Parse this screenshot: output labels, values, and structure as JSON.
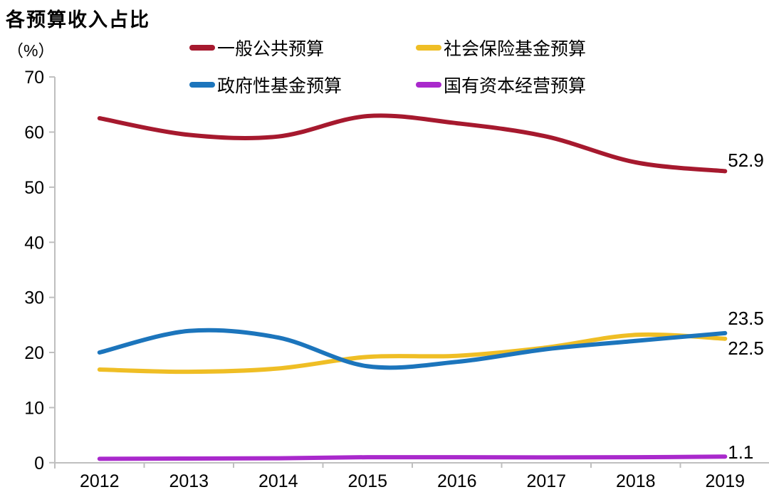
{
  "title": "各预算收入占比",
  "unit_label": "（%）",
  "colors": {
    "axis": "#BFBFBF",
    "text": "#000000",
    "background": "#FFFFFF"
  },
  "legend": [
    {
      "label": "一般公共预算",
      "color": "#A6192E"
    },
    {
      "label": "社会保险基金预算",
      "color": "#EFBE25"
    },
    {
      "label": "政府性基金预算",
      "color": "#1C75BC"
    },
    {
      "label": "国有资本经营预算",
      "color": "#A929CC"
    }
  ],
  "chart_data": {
    "type": "line",
    "title": "各预算收入占比",
    "ylabel": "（%）",
    "x": [
      "2012",
      "2013",
      "2014",
      "2015",
      "2016",
      "2017",
      "2018",
      "2019"
    ],
    "ylim": [
      0,
      70
    ],
    "yticks": [
      0,
      10,
      20,
      30,
      40,
      50,
      60,
      70
    ],
    "grid": false,
    "smooth": true,
    "legend_position": "top",
    "series": [
      {
        "name": "一般公共预算",
        "color": "#A6192E",
        "values": [
          62.5,
          59.5,
          59.2,
          62.9,
          61.6,
          59.2,
          54.5,
          52.9
        ],
        "end_label": "52.9"
      },
      {
        "name": "社会保险基金预算",
        "color": "#EFBE25",
        "values": [
          16.9,
          16.5,
          17.1,
          19.2,
          19.4,
          20.9,
          23.2,
          22.5
        ],
        "end_label": "22.5"
      },
      {
        "name": "政府性基金预算",
        "color": "#1C75BC",
        "values": [
          20.0,
          23.9,
          22.7,
          17.5,
          18.3,
          20.6,
          22.1,
          23.5
        ],
        "end_label": "23.5"
      },
      {
        "name": "国有资本经营预算",
        "color": "#A929CC",
        "values": [
          0.7,
          0.75,
          0.8,
          1.0,
          1.0,
          0.95,
          1.0,
          1.1
        ],
        "end_label": "1.1"
      }
    ],
    "end_label_dy": [
      -17,
      11,
      -23,
      -8
    ]
  }
}
